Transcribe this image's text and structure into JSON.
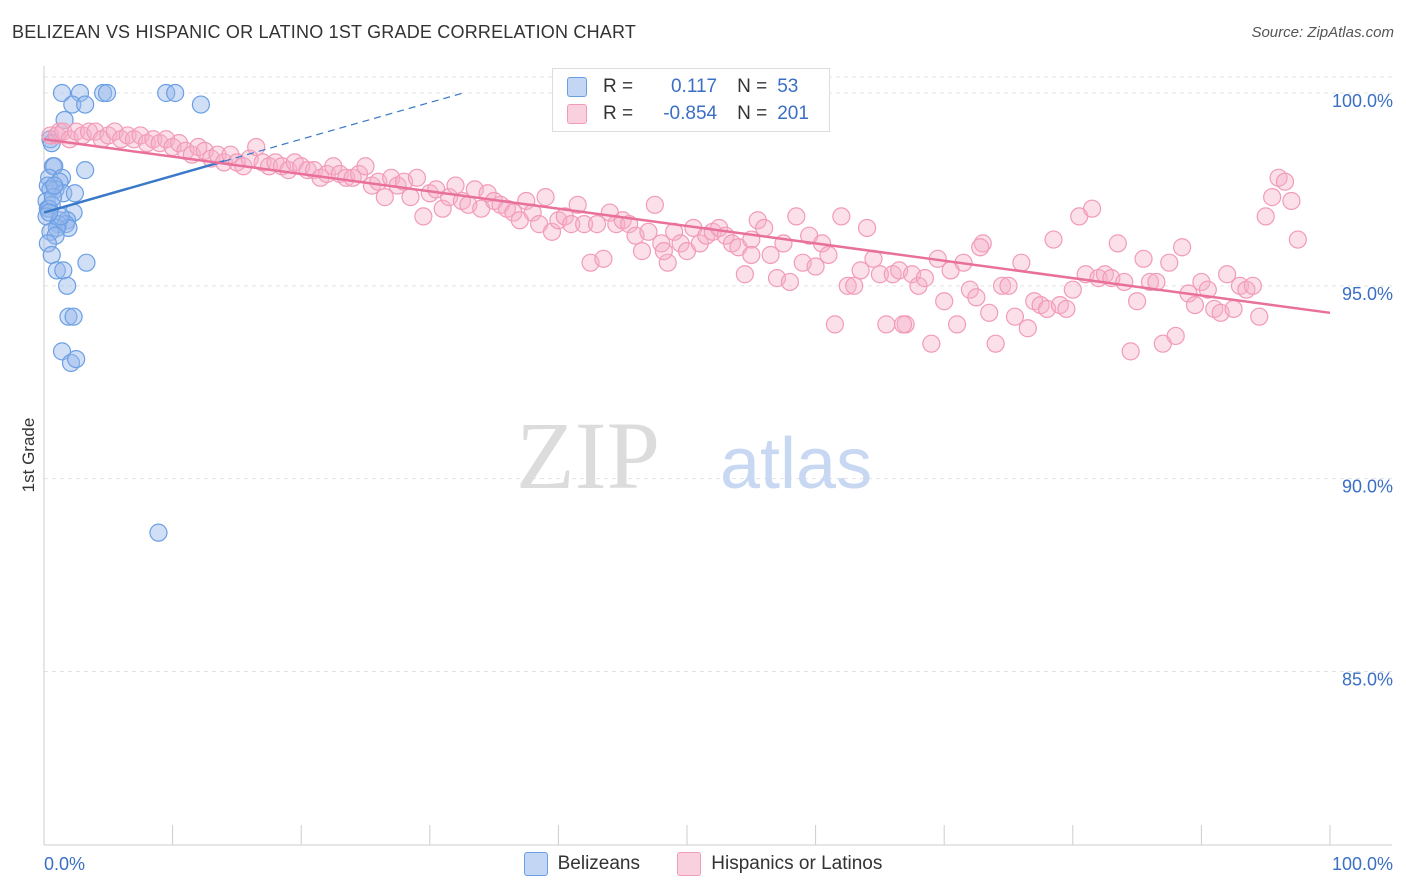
{
  "title": "BELIZEAN VS HISPANIC OR LATINO 1ST GRADE CORRELATION CHART",
  "source": "Source: ZipAtlas.com",
  "watermark": {
    "zip": "ZIP",
    "atlas": "atlas"
  },
  "colors": {
    "blue": "#6b9fe4",
    "blue_line": "#3a78c9",
    "pink": "#f29bb7",
    "pink_line": "#e8709a",
    "axis_label": "#3a6fc4"
  },
  "legend_stats": [
    {
      "r_label": "R =",
      "r_value": "0.117",
      "n_label": "N =",
      "n_value": "53"
    },
    {
      "r_label": "R =",
      "r_value": "-0.854",
      "n_label": "N =",
      "n_value": "201"
    }
  ],
  "chart_data": {
    "type": "scatter",
    "title": "BELIZEAN VS HISPANIC OR LATINO 1ST GRADE CORRELATION CHART",
    "xlabel": "",
    "ylabel": "1st Grade",
    "xlim": [
      0,
      100
    ],
    "ylim": [
      80.5,
      100.7
    ],
    "x_tick_labels": [
      "0.0%",
      "100.0%"
    ],
    "y_ticks": [
      85.0,
      90.0,
      95.0,
      100.0
    ],
    "y_tick_labels": [
      "85.0%",
      "90.0%",
      "95.0%",
      "100.0%"
    ],
    "legend": [
      "Belizeans",
      "Hispanics or Latinos"
    ],
    "series": [
      {
        "name": "Belizeans",
        "color": "#6b9fe4",
        "trend": {
          "x0": 0,
          "y0": 96.9,
          "x1": 32.6,
          "y1": 100.0,
          "solid_until_x": 14.0
        },
        "points": [
          [
            1.4,
            100.0
          ],
          [
            2.8,
            100.0
          ],
          [
            4.6,
            100.0
          ],
          [
            9.5,
            100.0
          ],
          [
            10.2,
            100.0
          ],
          [
            2.2,
            99.7
          ],
          [
            3.2,
            99.7
          ],
          [
            12.2,
            99.7
          ],
          [
            4.9,
            100.0
          ],
          [
            1.6,
            99.3
          ],
          [
            0.5,
            98.8
          ],
          [
            0.6,
            98.7
          ],
          [
            0.7,
            98.1
          ],
          [
            0.8,
            98.1
          ],
          [
            3.2,
            98.0
          ],
          [
            0.4,
            97.8
          ],
          [
            1.4,
            97.8
          ],
          [
            1.2,
            97.7
          ],
          [
            0.3,
            97.6
          ],
          [
            0.9,
            97.5
          ],
          [
            0.5,
            97.5
          ],
          [
            1.5,
            97.4
          ],
          [
            2.4,
            97.4
          ],
          [
            0.2,
            97.2
          ],
          [
            0.6,
            97.1
          ],
          [
            0.3,
            97.0
          ],
          [
            0.4,
            97.0
          ],
          [
            2.3,
            96.9
          ],
          [
            0.2,
            96.8
          ],
          [
            1.2,
            96.7
          ],
          [
            1.8,
            96.7
          ],
          [
            1.1,
            96.6
          ],
          [
            1.7,
            96.6
          ],
          [
            1.9,
            96.5
          ],
          [
            1.0,
            96.5
          ],
          [
            0.5,
            96.4
          ],
          [
            0.9,
            96.3
          ],
          [
            0.3,
            96.1
          ],
          [
            0.6,
            95.8
          ],
          [
            3.3,
            95.6
          ],
          [
            1.0,
            95.4
          ],
          [
            1.5,
            95.4
          ],
          [
            1.8,
            95.0
          ],
          [
            1.9,
            94.2
          ],
          [
            2.3,
            94.2
          ],
          [
            1.4,
            93.3
          ],
          [
            2.1,
            93.0
          ],
          [
            2.5,
            93.1
          ],
          [
            8.9,
            88.6
          ],
          [
            0.7,
            97.3
          ],
          [
            1.3,
            96.8
          ],
          [
            0.8,
            97.6
          ],
          [
            0.4,
            96.9
          ]
        ]
      },
      {
        "name": "Hispanics or Latinos",
        "color": "#f29bb7",
        "trend": {
          "x0": 0,
          "y0": 98.8,
          "x1": 100,
          "y1": 94.3
        },
        "points": [
          [
            0.5,
            98.9
          ],
          [
            1.0,
            98.9
          ],
          [
            1.2,
            99.0
          ],
          [
            1.5,
            99.0
          ],
          [
            2.0,
            98.8
          ],
          [
            2.5,
            99.0
          ],
          [
            3.0,
            98.9
          ],
          [
            3.5,
            99.0
          ],
          [
            4.0,
            99.0
          ],
          [
            4.5,
            98.8
          ],
          [
            5.0,
            98.9
          ],
          [
            5.5,
            99.0
          ],
          [
            6.0,
            98.8
          ],
          [
            6.5,
            98.9
          ],
          [
            7.0,
            98.8
          ],
          [
            7.5,
            98.9
          ],
          [
            8.0,
            98.7
          ],
          [
            8.5,
            98.8
          ],
          [
            9.0,
            98.7
          ],
          [
            9.5,
            98.8
          ],
          [
            10.0,
            98.6
          ],
          [
            10.5,
            98.7
          ],
          [
            11.0,
            98.5
          ],
          [
            11.5,
            98.4
          ],
          [
            12.0,
            98.6
          ],
          [
            12.5,
            98.5
          ],
          [
            13.0,
            98.3
          ],
          [
            13.5,
            98.4
          ],
          [
            14.0,
            98.2
          ],
          [
            14.5,
            98.4
          ],
          [
            15.0,
            98.2
          ],
          [
            15.5,
            98.1
          ],
          [
            16.0,
            98.3
          ],
          [
            16.5,
            98.6
          ],
          [
            17.0,
            98.2
          ],
          [
            17.5,
            98.1
          ],
          [
            18.0,
            98.2
          ],
          [
            18.5,
            98.1
          ],
          [
            19.0,
            98.0
          ],
          [
            19.5,
            98.2
          ],
          [
            20.0,
            98.1
          ],
          [
            20.5,
            98.0
          ],
          [
            21.0,
            98.0
          ],
          [
            21.5,
            97.8
          ],
          [
            22.0,
            97.9
          ],
          [
            22.5,
            98.1
          ],
          [
            23.0,
            97.9
          ],
          [
            23.5,
            97.8
          ],
          [
            24.0,
            97.8
          ],
          [
            24.5,
            97.9
          ],
          [
            25.0,
            98.1
          ],
          [
            25.5,
            97.6
          ],
          [
            26.0,
            97.7
          ],
          [
            26.5,
            97.3
          ],
          [
            27.0,
            97.8
          ],
          [
            27.5,
            97.6
          ],
          [
            28.0,
            97.7
          ],
          [
            28.5,
            97.3
          ],
          [
            29.0,
            97.8
          ],
          [
            29.5,
            96.8
          ],
          [
            30.0,
            97.4
          ],
          [
            30.5,
            97.5
          ],
          [
            31.0,
            97.0
          ],
          [
            31.5,
            97.3
          ],
          [
            32.0,
            97.6
          ],
          [
            32.5,
            97.2
          ],
          [
            33.0,
            97.1
          ],
          [
            33.5,
            97.5
          ],
          [
            34.0,
            97.0
          ],
          [
            34.5,
            97.4
          ],
          [
            35.0,
            97.2
          ],
          [
            35.5,
            97.1
          ],
          [
            36.0,
            97.0
          ],
          [
            36.5,
            96.9
          ],
          [
            37.0,
            96.7
          ],
          [
            37.5,
            97.2
          ],
          [
            38.0,
            96.9
          ],
          [
            38.5,
            96.6
          ],
          [
            39.0,
            97.3
          ],
          [
            39.5,
            96.4
          ],
          [
            40.0,
            96.7
          ],
          [
            40.5,
            96.8
          ],
          [
            41.0,
            96.6
          ],
          [
            41.5,
            97.1
          ],
          [
            42.0,
            96.6
          ],
          [
            42.5,
            95.6
          ],
          [
            43.0,
            96.6
          ],
          [
            43.5,
            95.7
          ],
          [
            44.0,
            96.9
          ],
          [
            44.5,
            96.6
          ],
          [
            45.0,
            96.7
          ],
          [
            45.5,
            96.6
          ],
          [
            46.0,
            96.3
          ],
          [
            46.5,
            95.9
          ],
          [
            47.0,
            96.4
          ],
          [
            47.5,
            97.1
          ],
          [
            48.0,
            96.1
          ],
          [
            48.5,
            95.6
          ],
          [
            49.0,
            96.4
          ],
          [
            49.5,
            96.1
          ],
          [
            50.0,
            95.9
          ],
          [
            50.5,
            96.5
          ],
          [
            51.0,
            96.1
          ],
          [
            51.5,
            96.3
          ],
          [
            52.0,
            96.4
          ],
          [
            52.5,
            96.5
          ],
          [
            53.0,
            96.3
          ],
          [
            53.5,
            96.1
          ],
          [
            54.0,
            96.0
          ],
          [
            54.5,
            95.3
          ],
          [
            55.0,
            96.2
          ],
          [
            55.5,
            96.7
          ],
          [
            56.0,
            96.5
          ],
          [
            56.5,
            95.8
          ],
          [
            57.0,
            95.2
          ],
          [
            57.5,
            96.1
          ],
          [
            58.0,
            95.1
          ],
          [
            58.5,
            96.8
          ],
          [
            59.0,
            95.6
          ],
          [
            59.5,
            96.3
          ],
          [
            60.0,
            95.5
          ],
          [
            60.5,
            96.1
          ],
          [
            61.0,
            95.8
          ],
          [
            61.5,
            94.0
          ],
          [
            62.0,
            96.8
          ],
          [
            62.5,
            95.0
          ],
          [
            63.0,
            95.0
          ],
          [
            63.5,
            95.4
          ],
          [
            64.0,
            96.5
          ],
          [
            64.5,
            95.7
          ],
          [
            65.0,
            95.3
          ],
          [
            65.5,
            94.0
          ],
          [
            66.0,
            95.3
          ],
          [
            66.5,
            95.4
          ],
          [
            67.0,
            94.0
          ],
          [
            67.5,
            95.3
          ],
          [
            68.0,
            95.0
          ],
          [
            68.5,
            95.2
          ],
          [
            69.0,
            93.5
          ],
          [
            69.5,
            95.7
          ],
          [
            70.0,
            94.6
          ],
          [
            70.5,
            95.4
          ],
          [
            71.0,
            94.0
          ],
          [
            71.5,
            95.6
          ],
          [
            72.0,
            94.9
          ],
          [
            72.5,
            94.7
          ],
          [
            73.0,
            96.1
          ],
          [
            73.5,
            94.3
          ],
          [
            74.0,
            93.5
          ],
          [
            74.5,
            95.0
          ],
          [
            75.0,
            95.0
          ],
          [
            75.5,
            94.2
          ],
          [
            76.0,
            95.6
          ],
          [
            76.5,
            93.9
          ],
          [
            77.0,
            94.6
          ],
          [
            77.5,
            94.5
          ],
          [
            78.0,
            94.4
          ],
          [
            78.5,
            96.2
          ],
          [
            79.0,
            94.5
          ],
          [
            79.5,
            94.4
          ],
          [
            80.0,
            94.9
          ],
          [
            80.5,
            96.8
          ],
          [
            81.0,
            95.3
          ],
          [
            81.5,
            97.0
          ],
          [
            82.0,
            95.2
          ],
          [
            82.5,
            95.3
          ],
          [
            83.0,
            95.2
          ],
          [
            83.5,
            96.1
          ],
          [
            84.0,
            95.1
          ],
          [
            84.5,
            93.3
          ],
          [
            85.0,
            94.6
          ],
          [
            85.5,
            95.7
          ],
          [
            86.0,
            95.1
          ],
          [
            86.5,
            95.1
          ],
          [
            87.0,
            93.5
          ],
          [
            87.5,
            95.6
          ],
          [
            88.0,
            93.7
          ],
          [
            88.5,
            96.0
          ],
          [
            89.0,
            94.8
          ],
          [
            89.5,
            94.5
          ],
          [
            90.0,
            95.1
          ],
          [
            90.5,
            94.9
          ],
          [
            91.0,
            94.4
          ],
          [
            91.5,
            94.3
          ],
          [
            92.0,
            95.3
          ],
          [
            92.5,
            94.4
          ],
          [
            93.0,
            95.0
          ],
          [
            93.5,
            94.9
          ],
          [
            94.0,
            95.0
          ],
          [
            94.5,
            94.2
          ],
          [
            95.0,
            96.8
          ],
          [
            95.5,
            97.3
          ],
          [
            96.0,
            97.8
          ],
          [
            96.5,
            97.7
          ],
          [
            97.0,
            97.2
          ],
          [
            97.5,
            96.2
          ],
          [
            48.2,
            95.9
          ],
          [
            72.8,
            96.0
          ],
          [
            66.8,
            94.0
          ],
          [
            55.0,
            95.8
          ]
        ]
      }
    ]
  }
}
